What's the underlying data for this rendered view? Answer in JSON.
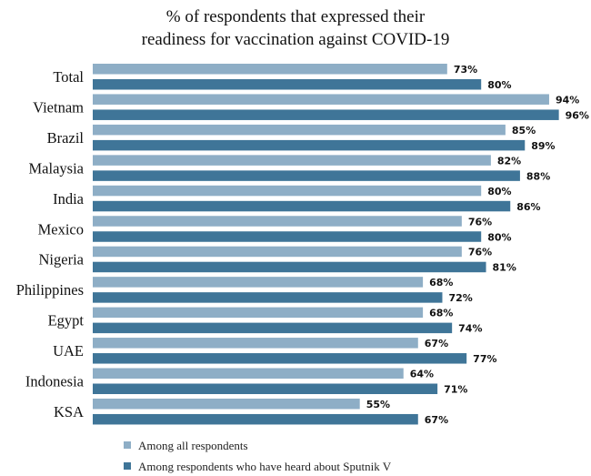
{
  "chart_data": {
    "type": "bar",
    "orientation": "horizontal",
    "title": [
      "% of respondents that  expressed their",
      "readiness for vaccination  against COVID-19"
    ],
    "categories": [
      "Total",
      "Vietnam",
      "Brazil",
      "Malaysia",
      "India",
      "Mexico",
      "Nigeria",
      "Philippines",
      "Egypt",
      "UAE",
      "Indonesia",
      "KSA"
    ],
    "series": [
      {
        "name": "Among all respondents",
        "color": "#8eaec6",
        "values": [
          73,
          94,
          85,
          82,
          80,
          76,
          76,
          68,
          68,
          67,
          64,
          55
        ]
      },
      {
        "name": "Among respondents who have heard about Sputnik V",
        "color": "#3f7598",
        "values": [
          80,
          96,
          89,
          88,
          86,
          80,
          81,
          72,
          74,
          77,
          71,
          67
        ]
      }
    ],
    "value_suffix": "%",
    "xlim": [
      0,
      100
    ],
    "grid": false,
    "legend_position": "bottom-left"
  }
}
